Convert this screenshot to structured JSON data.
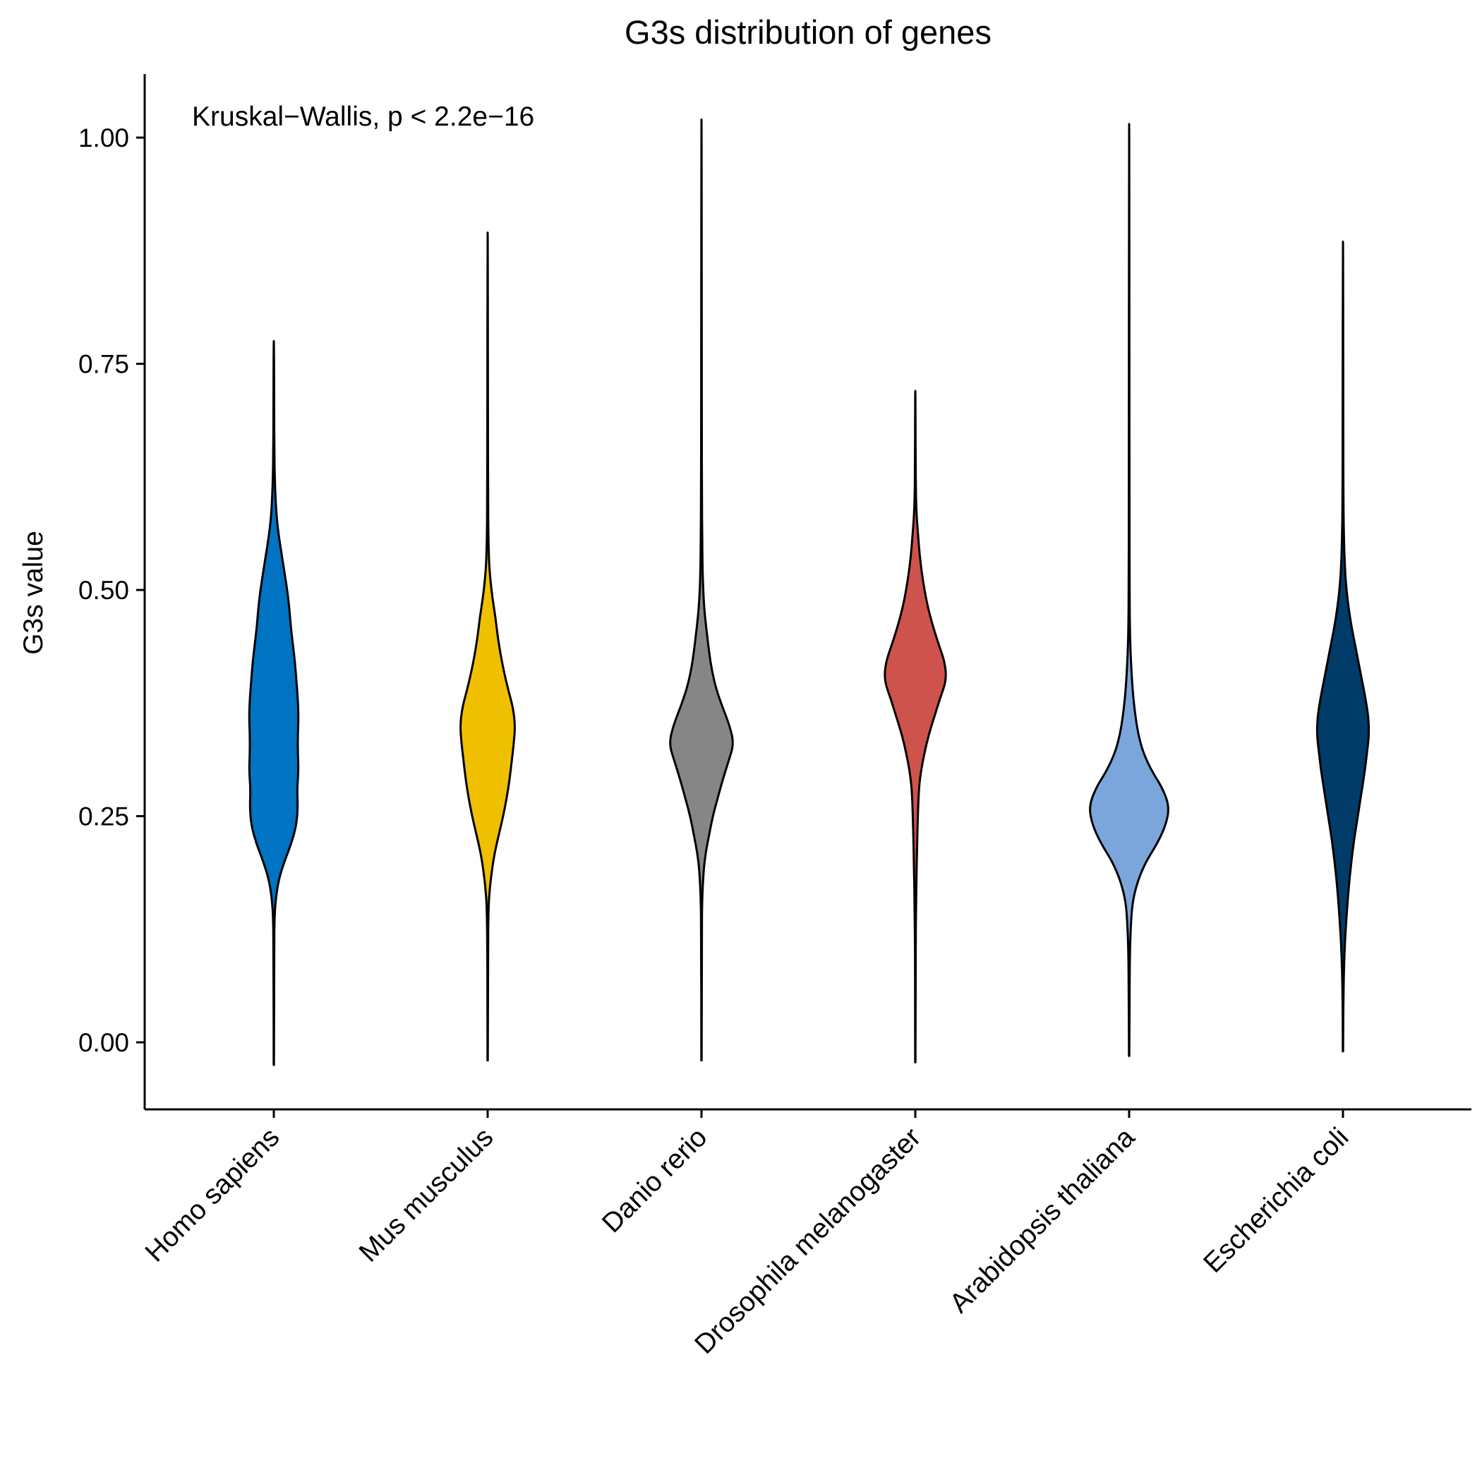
{
  "chart_data": {
    "type": "violin",
    "title": "G3s distribution of genes",
    "xlabel": "",
    "ylabel": "G3s value",
    "annotation": "Kruskal−Wallis, p < 2.2e−16",
    "ylim": [
      -0.075,
      1.07
    ],
    "yticks": [
      0.0,
      0.25,
      0.5,
      0.75,
      1.0
    ],
    "ytick_labels": [
      "0.00",
      "0.25",
      "0.50",
      "0.75",
      "1.00"
    ],
    "grid": false,
    "legend": "none",
    "categories": [
      "Homo sapiens",
      "Mus musculus",
      "Danio rerio",
      "Drosophila melanogaster",
      "Arabidopsis thaliana",
      "Escherichia coli"
    ],
    "series": [
      {
        "color": "#0073C2",
        "y_min": -0.025,
        "y_max": 0.775,
        "profile": [
          [
            -0.025,
            0.2
          ],
          [
            0.1,
            0.35
          ],
          [
            0.14,
            1
          ],
          [
            0.16,
            3
          ],
          [
            0.18,
            7
          ],
          [
            0.2,
            15
          ],
          [
            0.22,
            25
          ],
          [
            0.24,
            32
          ],
          [
            0.26,
            34
          ],
          [
            0.28,
            33
          ],
          [
            0.3,
            35
          ],
          [
            0.32,
            34
          ],
          [
            0.34,
            34
          ],
          [
            0.36,
            35
          ],
          [
            0.38,
            34
          ],
          [
            0.4,
            32
          ],
          [
            0.42,
            30
          ],
          [
            0.44,
            27
          ],
          [
            0.46,
            24
          ],
          [
            0.48,
            22
          ],
          [
            0.5,
            19
          ],
          [
            0.52,
            15
          ],
          [
            0.54,
            11
          ],
          [
            0.56,
            7
          ],
          [
            0.58,
            4
          ],
          [
            0.6,
            2.5
          ],
          [
            0.62,
            1.5
          ],
          [
            0.65,
            0.8
          ],
          [
            0.7,
            0.5
          ],
          [
            0.775,
            0.2
          ]
        ]
      },
      {
        "color": "#EFC000",
        "y_min": -0.02,
        "y_max": 0.895,
        "profile": [
          [
            -0.02,
            0.2
          ],
          [
            0.1,
            0.35
          ],
          [
            0.15,
            1.2
          ],
          [
            0.17,
            3
          ],
          [
            0.19,
            6
          ],
          [
            0.21,
            10
          ],
          [
            0.23,
            16
          ],
          [
            0.25,
            22
          ],
          [
            0.27,
            27
          ],
          [
            0.29,
            31
          ],
          [
            0.31,
            34
          ],
          [
            0.33,
            37
          ],
          [
            0.35,
            39
          ],
          [
            0.37,
            36
          ],
          [
            0.39,
            29
          ],
          [
            0.41,
            23
          ],
          [
            0.43,
            18
          ],
          [
            0.45,
            14
          ],
          [
            0.47,
            11
          ],
          [
            0.49,
            7
          ],
          [
            0.51,
            4
          ],
          [
            0.53,
            2
          ],
          [
            0.56,
            1
          ],
          [
            0.6,
            0.6
          ],
          [
            0.7,
            0.4
          ],
          [
            0.895,
            0.2
          ]
        ]
      },
      {
        "color": "#868686",
        "y_min": -0.02,
        "y_max": 1.02,
        "profile": [
          [
            -0.02,
            0.2
          ],
          [
            0.12,
            0.35
          ],
          [
            0.16,
            1
          ],
          [
            0.19,
            3
          ],
          [
            0.21,
            6
          ],
          [
            0.23,
            11
          ],
          [
            0.25,
            16
          ],
          [
            0.27,
            23
          ],
          [
            0.29,
            30
          ],
          [
            0.31,
            38
          ],
          [
            0.33,
            46
          ],
          [
            0.35,
            40
          ],
          [
            0.37,
            30
          ],
          [
            0.39,
            21
          ],
          [
            0.41,
            15
          ],
          [
            0.43,
            11
          ],
          [
            0.45,
            8
          ],
          [
            0.47,
            5
          ],
          [
            0.49,
            3
          ],
          [
            0.52,
            1.5
          ],
          [
            0.56,
            1
          ],
          [
            0.6,
            0.6
          ],
          [
            0.7,
            0.4
          ],
          [
            1.02,
            0.2
          ]
        ]
      },
      {
        "color": "#CD534C",
        "y_min": -0.022,
        "y_max": 0.72,
        "profile": [
          [
            -0.022,
            0.2
          ],
          [
            0.1,
            0.35
          ],
          [
            0.15,
            1
          ],
          [
            0.2,
            2
          ],
          [
            0.25,
            3.5
          ],
          [
            0.28,
            5
          ],
          [
            0.3,
            8
          ],
          [
            0.32,
            13
          ],
          [
            0.34,
            19
          ],
          [
            0.36,
            27
          ],
          [
            0.38,
            35
          ],
          [
            0.4,
            44
          ],
          [
            0.42,
            42
          ],
          [
            0.44,
            33
          ],
          [
            0.46,
            25
          ],
          [
            0.48,
            18
          ],
          [
            0.5,
            13
          ],
          [
            0.52,
            9
          ],
          [
            0.54,
            6
          ],
          [
            0.56,
            4
          ],
          [
            0.58,
            2
          ],
          [
            0.6,
            1
          ],
          [
            0.63,
            0.5
          ],
          [
            0.72,
            0.2
          ]
        ]
      },
      {
        "color": "#7AA6DC",
        "y_min": -0.015,
        "y_max": 1.015,
        "profile": [
          [
            -0.015,
            0.2
          ],
          [
            0.05,
            0.6
          ],
          [
            0.1,
            1
          ],
          [
            0.14,
            3
          ],
          [
            0.16,
            6
          ],
          [
            0.18,
            13
          ],
          [
            0.2,
            24
          ],
          [
            0.22,
            40
          ],
          [
            0.24,
            52
          ],
          [
            0.26,
            57
          ],
          [
            0.28,
            48
          ],
          [
            0.3,
            32
          ],
          [
            0.32,
            20
          ],
          [
            0.34,
            13
          ],
          [
            0.36,
            9
          ],
          [
            0.38,
            6
          ],
          [
            0.4,
            4
          ],
          [
            0.43,
            2
          ],
          [
            0.46,
            1
          ],
          [
            0.5,
            0.6
          ],
          [
            0.6,
            0.4
          ],
          [
            1.015,
            0.2
          ]
        ]
      },
      {
        "color": "#003C67",
        "y_min": -0.01,
        "y_max": 0.885,
        "profile": [
          [
            -0.01,
            0.2
          ],
          [
            0.05,
            0.5
          ],
          [
            0.1,
            2
          ],
          [
            0.14,
            5
          ],
          [
            0.18,
            9
          ],
          [
            0.22,
            15
          ],
          [
            0.24,
            19
          ],
          [
            0.26,
            23
          ],
          [
            0.28,
            27
          ],
          [
            0.3,
            31
          ],
          [
            0.32,
            34
          ],
          [
            0.34,
            37
          ],
          [
            0.36,
            36
          ],
          [
            0.38,
            32
          ],
          [
            0.4,
            27
          ],
          [
            0.42,
            22
          ],
          [
            0.44,
            17
          ],
          [
            0.46,
            12
          ],
          [
            0.48,
            8
          ],
          [
            0.5,
            5
          ],
          [
            0.52,
            3
          ],
          [
            0.55,
            1.5
          ],
          [
            0.6,
            0.6
          ],
          [
            0.7,
            0.4
          ],
          [
            0.885,
            0.2
          ]
        ]
      }
    ]
  }
}
